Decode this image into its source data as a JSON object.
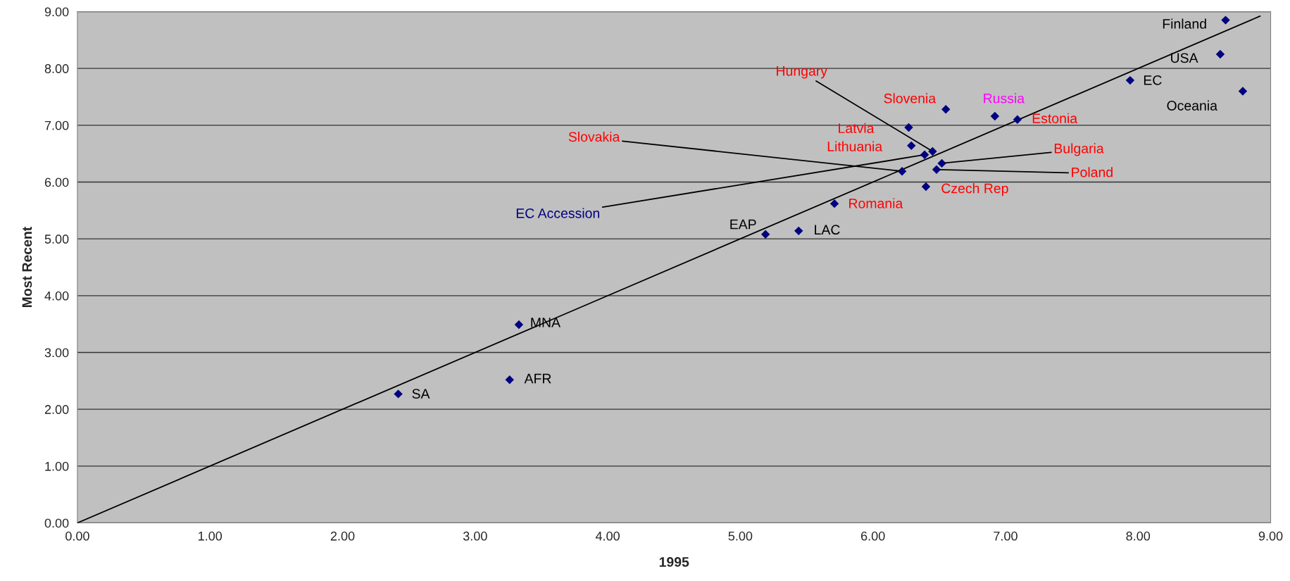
{
  "chart_data": {
    "type": "scatter",
    "xlabel": "1995",
    "ylabel": "Most Recent",
    "xlim": [
      0,
      9
    ],
    "ylim": [
      0,
      9
    ],
    "xticks": [
      {
        "value": 0,
        "label": "0.00"
      },
      {
        "value": 1,
        "label": "1.00"
      },
      {
        "value": 2,
        "label": "2.00"
      },
      {
        "value": 3,
        "label": "3.00"
      },
      {
        "value": 4,
        "label": "4.00"
      },
      {
        "value": 5,
        "label": "5.00"
      },
      {
        "value": 6,
        "label": "6.00"
      },
      {
        "value": 7,
        "label": "7.00"
      },
      {
        "value": 8,
        "label": "8.00"
      },
      {
        "value": 9,
        "label": "9.00"
      }
    ],
    "yticks": [
      {
        "value": 0,
        "label": "0.00"
      },
      {
        "value": 1,
        "label": "1.00"
      },
      {
        "value": 2,
        "label": "2.00"
      },
      {
        "value": 3,
        "label": "3.00"
      },
      {
        "value": 4,
        "label": "4.00"
      },
      {
        "value": 5,
        "label": "5.00"
      },
      {
        "value": 6,
        "label": "6.00"
      },
      {
        "value": 7,
        "label": "7.00"
      },
      {
        "value": 8,
        "label": "8.00"
      },
      {
        "value": 9,
        "label": "9.00"
      }
    ],
    "grid": "y",
    "legend": false,
    "series": [
      {
        "marker": "diamond",
        "color": "#000080",
        "x": [
          8.66,
          8.62,
          7.94,
          8.79,
          6.55,
          6.92,
          7.09,
          6.27,
          6.29,
          6.45,
          6.39,
          6.52,
          6.48,
          6.22,
          6.4,
          5.71,
          5.44,
          5.19,
          3.33,
          3.26,
          2.42
        ],
        "values": [
          8.85,
          8.25,
          7.79,
          7.6,
          7.28,
          7.16,
          7.1,
          6.96,
          6.64,
          6.54,
          6.48,
          6.33,
          6.22,
          6.19,
          5.92,
          5.62,
          5.14,
          5.08,
          3.49,
          2.52,
          2.27
        ]
      },
      {
        "type": "line",
        "marker": "none",
        "color": "#000000",
        "x": [
          0,
          8.92
        ],
        "values": [
          0,
          8.92
        ]
      }
    ],
    "annotations": [
      {
        "text": "Finland",
        "x": 8.66,
        "y": 8.85
      },
      {
        "text": "USA",
        "x": 8.62,
        "y": 8.25
      },
      {
        "text": "EC",
        "x": 7.94,
        "y": 7.79
      },
      {
        "text": "Oceania",
        "x": 8.79,
        "y": 7.6
      },
      {
        "text": "Slovenia",
        "x": 6.55,
        "y": 7.28
      },
      {
        "text": "Russia",
        "x": 6.92,
        "y": 7.16
      },
      {
        "text": "Estonia",
        "x": 7.09,
        "y": 7.1
      },
      {
        "text": "Latvia",
        "x": 6.27,
        "y": 6.96
      },
      {
        "text": "Lithuania",
        "x": 6.29,
        "y": 6.64
      },
      {
        "text": "Hungary",
        "x": 6.45,
        "y": 6.54
      },
      {
        "text": "EC Accession",
        "x": 6.39,
        "y": 6.48
      },
      {
        "text": "Bulgaria",
        "x": 6.52,
        "y": 6.33
      },
      {
        "text": "Poland",
        "x": 6.48,
        "y": 6.22
      },
      {
        "text": "Slovakia",
        "x": 6.22,
        "y": 6.19
      },
      {
        "text": "Czech Rep",
        "x": 6.4,
        "y": 5.92
      },
      {
        "text": "Romania",
        "x": 5.71,
        "y": 5.62
      },
      {
        "text": "LAC",
        "x": 5.44,
        "y": 5.14
      },
      {
        "text": "EAP",
        "x": 5.19,
        "y": 5.08
      },
      {
        "text": "MNA",
        "x": 3.33,
        "y": 3.49
      },
      {
        "text": "AFR",
        "x": 3.26,
        "y": 2.52
      },
      {
        "text": "SA",
        "x": 2.42,
        "y": 2.27
      }
    ]
  }
}
